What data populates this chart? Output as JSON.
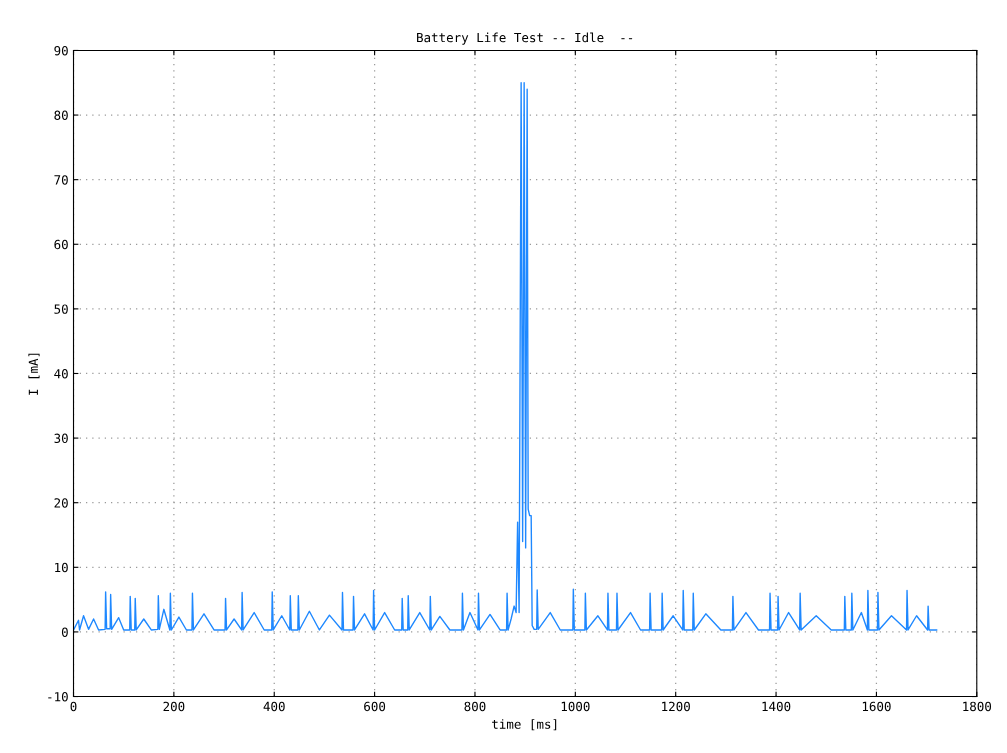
{
  "chart_data": {
    "type": "line",
    "title": "Battery Life Test -- Idle  --",
    "xlabel": "time [ms]",
    "ylabel": "I [mA]",
    "xlim": [
      0,
      1800
    ],
    "xticks": [
      0,
      200,
      400,
      600,
      800,
      1000,
      1200,
      1400,
      1600,
      1800
    ],
    "ylim": [
      -10,
      90
    ],
    "yticks": [
      -10,
      0,
      10,
      20,
      30,
      40,
      50,
      60,
      70,
      80,
      90
    ],
    "grid": true,
    "line_style": "solid",
    "marker": "none",
    "series": [
      {
        "color": "#1e88ff",
        "x": [
          0,
          10,
          12,
          20,
          30,
          40,
          50,
          63,
          64,
          66,
          73,
          74,
          76,
          90,
          100,
          112,
          113,
          115,
          122,
          123,
          125,
          140,
          155,
          168,
          169,
          171,
          180,
          192,
          193,
          195,
          210,
          225,
          236,
          237,
          239,
          260,
          280,
          302,
          303,
          305,
          320,
          335,
          336,
          338,
          360,
          380,
          395,
          396,
          398,
          415,
          431,
          432,
          434,
          447,
          448,
          450,
          470,
          490,
          510,
          535,
          536,
          538,
          557,
          558,
          560,
          580,
          597,
          598,
          600,
          620,
          640,
          654,
          655,
          657,
          666,
          667,
          669,
          690,
          710,
          711,
          713,
          730,
          750,
          774,
          775,
          777,
          790,
          806,
          807,
          809,
          830,
          850,
          863,
          864,
          866,
          872,
          878,
          882,
          885,
          888,
          892,
          895,
          898,
          901,
          904,
          906,
          909,
          912,
          914,
          918,
          923,
          924,
          926,
          950,
          970,
          995,
          996,
          998,
          1019,
          1020,
          1022,
          1045,
          1064,
          1065,
          1067,
          1082,
          1083,
          1085,
          1110,
          1130,
          1148,
          1149,
          1151,
          1172,
          1173,
          1175,
          1195,
          1214,
          1215,
          1217,
          1234,
          1235,
          1237,
          1260,
          1290,
          1313,
          1314,
          1316,
          1340,
          1365,
          1387,
          1388,
          1390,
          1403,
          1404,
          1406,
          1425,
          1447,
          1448,
          1450,
          1480,
          1510,
          1536,
          1537,
          1539,
          1550,
          1551,
          1553,
          1570,
          1582,
          1583,
          1585,
          1602,
          1603,
          1605,
          1630,
          1660,
          1661,
          1663,
          1680,
          1702,
          1703,
          1705,
          1720
        ],
        "values": [
          0.3,
          1.8,
          0.3,
          2.5,
          0.4,
          2.0,
          0.3,
          0.4,
          6.2,
          0.5,
          0.5,
          5.8,
          0.4,
          2.2,
          0.3,
          0.3,
          5.5,
          0.3,
          0.3,
          5.2,
          0.3,
          2.0,
          0.3,
          0.4,
          5.6,
          0.4,
          3.5,
          0.3,
          6.0,
          0.3,
          2.3,
          0.3,
          0.3,
          6.0,
          0.3,
          2.8,
          0.3,
          0.3,
          5.2,
          0.3,
          2.0,
          0.3,
          6.1,
          0.3,
          3.0,
          0.3,
          0.3,
          6.2,
          0.3,
          2.5,
          0.3,
          5.6,
          0.3,
          0.3,
          5.6,
          0.3,
          3.2,
          0.3,
          2.6,
          0.3,
          6.1,
          0.3,
          0.3,
          5.5,
          0.3,
          2.8,
          0.3,
          6.4,
          0.3,
          3.0,
          0.3,
          0.3,
          5.2,
          0.3,
          0.3,
          5.6,
          0.3,
          3.0,
          0.3,
          5.5,
          0.3,
          2.4,
          0.3,
          0.3,
          6.0,
          0.3,
          3.0,
          0.3,
          6.0,
          0.3,
          2.7,
          0.3,
          0.3,
          6.0,
          0.3,
          2.0,
          4.0,
          3.0,
          17.0,
          3.0,
          85.0,
          14.0,
          85.0,
          13.0,
          84.0,
          19.0,
          18.0,
          18.0,
          1.0,
          0.4,
          0.4,
          6.5,
          0.4,
          3.0,
          0.3,
          0.3,
          6.6,
          0.3,
          0.3,
          6.0,
          0.3,
          2.5,
          0.3,
          6.0,
          0.3,
          0.3,
          6.0,
          0.3,
          3.0,
          0.3,
          0.3,
          6.0,
          0.3,
          0.3,
          6.0,
          0.3,
          2.5,
          0.3,
          6.4,
          0.3,
          0.3,
          6.0,
          0.3,
          2.8,
          0.3,
          0.3,
          5.5,
          0.3,
          3.0,
          0.3,
          0.3,
          6.0,
          0.3,
          0.3,
          5.5,
          0.3,
          3.0,
          0.3,
          6.0,
          0.3,
          2.5,
          0.3,
          0.3,
          5.5,
          0.3,
          0.3,
          6.0,
          0.3,
          3.0,
          0.3,
          6.4,
          0.3,
          0.3,
          6.1,
          0.3,
          2.5,
          0.3,
          6.4,
          0.3,
          2.5,
          0.3,
          4.0,
          0.3,
          0.3
        ]
      }
    ]
  }
}
